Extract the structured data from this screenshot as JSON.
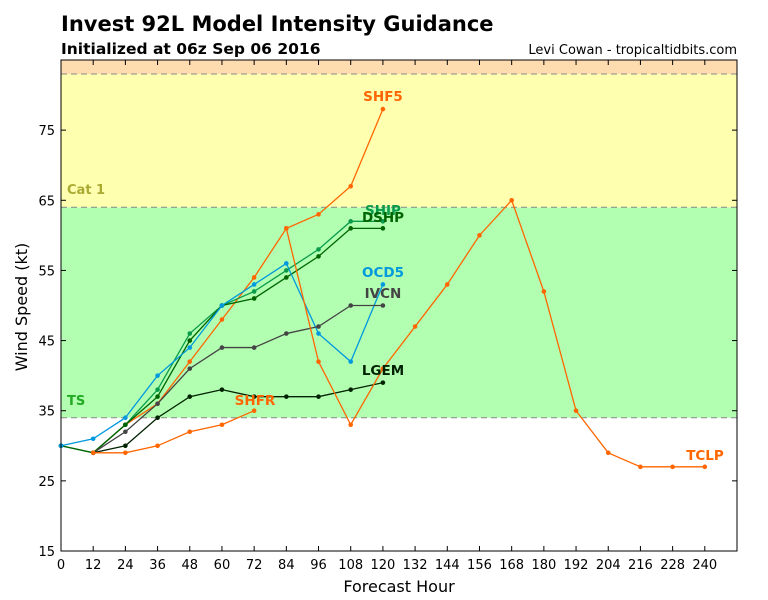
{
  "header": {
    "title": "Invest 92L Model Intensity Guidance",
    "subtitle": "Initialized at 06z Sep 06 2016",
    "credit": "Levi Cowan - tropicaltidbits.com"
  },
  "chart_data": {
    "type": "line",
    "xlabel": "Forecast Hour",
    "ylabel": "Wind Speed (kt)",
    "xlim": [
      0,
      252
    ],
    "ylim": [
      15,
      85
    ],
    "x_ticks": [
      0,
      12,
      24,
      36,
      48,
      60,
      72,
      84,
      96,
      108,
      120,
      132,
      144,
      156,
      168,
      180,
      192,
      204,
      216,
      228,
      240
    ],
    "y_ticks": [
      15,
      25,
      35,
      45,
      55,
      65,
      75
    ],
    "bands": [
      {
        "label": "TS",
        "from": 34,
        "to": 64,
        "color": "#b2ffb2",
        "label_color": "#22aa22"
      },
      {
        "label": "Cat 1",
        "from": 64,
        "to": 83,
        "color": "#ffffb0",
        "label_color": "#aaaa33"
      },
      {
        "label": "",
        "from": 83,
        "to": 85,
        "color": "#ffdcb0",
        "label_color": "#cc8833"
      }
    ],
    "threshold_lines": [
      34,
      64,
      83
    ],
    "series": [
      {
        "name": "SHF5",
        "color": "#ff6600",
        "label_pos": "end",
        "x": [
          12,
          24,
          36,
          48,
          60,
          72,
          84,
          96,
          108,
          120
        ],
        "y": [
          29,
          33,
          36,
          42,
          48,
          54,
          61,
          63,
          67,
          78
        ]
      },
      {
        "name": "SHIP",
        "color": "#0a9b4a",
        "label_pos": "end",
        "x": [
          0,
          12,
          24,
          36,
          48,
          60,
          72,
          84,
          96,
          108,
          120
        ],
        "y": [
          30,
          29,
          33,
          38,
          46,
          50,
          52,
          55,
          58,
          62,
          62
        ]
      },
      {
        "name": "DSHP",
        "color": "#006400",
        "label_pos": "end",
        "x": [
          0,
          12,
          24,
          36,
          48,
          60,
          72,
          84,
          96,
          108,
          120
        ],
        "y": [
          30,
          29,
          33,
          37,
          45,
          50,
          51,
          54,
          57,
          61,
          61
        ]
      },
      {
        "name": "OCD5",
        "color": "#0099dd",
        "label_pos": "end",
        "x": [
          0,
          12,
          24,
          36,
          48,
          60,
          72,
          84,
          96,
          108,
          120
        ],
        "y": [
          30,
          31,
          34,
          40,
          44,
          50,
          53,
          56,
          46,
          42,
          53
        ]
      },
      {
        "name": "IVCN",
        "color": "#444444",
        "label_pos": "end",
        "x": [
          12,
          24,
          36,
          48,
          60,
          72,
          84,
          96,
          108,
          120
        ],
        "y": [
          29,
          32,
          36,
          41,
          44,
          44,
          46,
          47,
          50,
          50
        ]
      },
      {
        "name": "LGEM",
        "color": "#002200",
        "label_pos": "end",
        "x": [
          12,
          24,
          36,
          48,
          60,
          72,
          84,
          96,
          108,
          120
        ],
        "y": [
          29,
          30,
          34,
          37,
          38,
          37,
          37,
          37,
          38,
          39
        ]
      },
      {
        "name": "SHFR",
        "color": "#ff6600",
        "label_pos": "end",
        "x": [
          12,
          24,
          36,
          48,
          60,
          72
        ],
        "y": [
          29,
          29,
          30,
          32,
          33,
          35
        ]
      },
      {
        "name": "TCLP",
        "color": "#ff6600",
        "label_pos": "end",
        "x": [
          84,
          96,
          108,
          120,
          132,
          144,
          156,
          168,
          180,
          192,
          204,
          216,
          228,
          240
        ],
        "y": [
          61,
          42,
          33,
          41,
          47,
          53,
          60,
          65,
          52,
          35,
          29,
          27,
          27,
          27
        ]
      }
    ]
  }
}
